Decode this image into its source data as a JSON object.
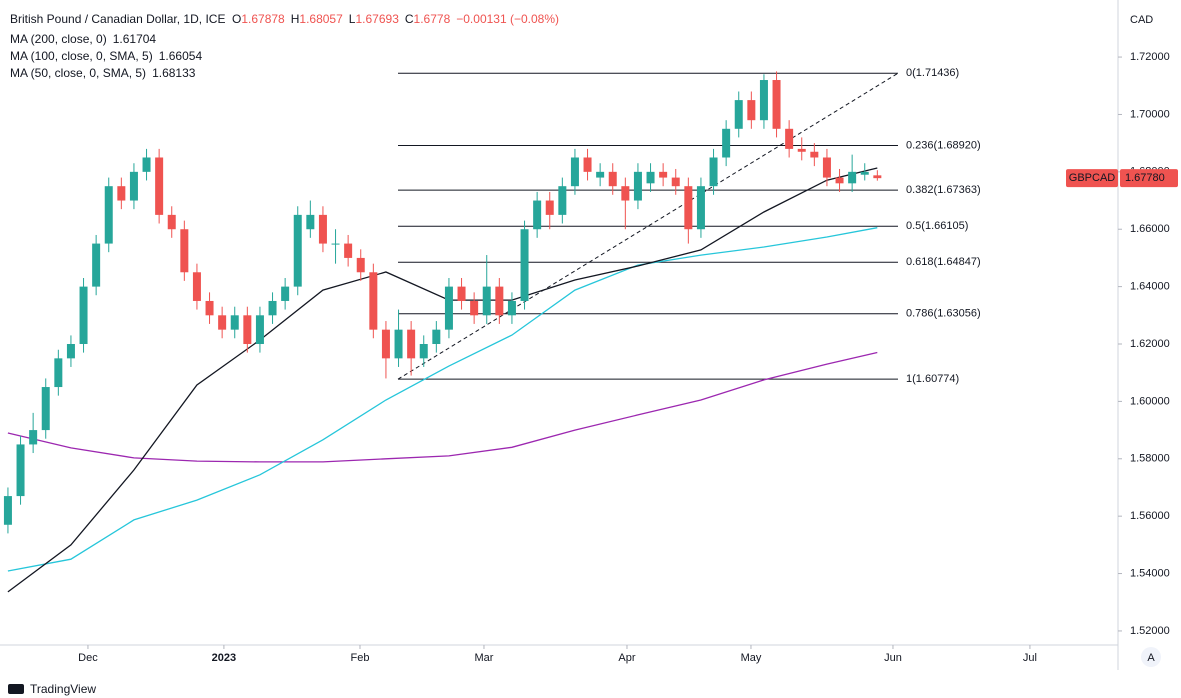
{
  "chart_data": {
    "type": "candlestick",
    "title": "British Pound / Canadian Dollar, 1D, ICE",
    "ohlc_letters": [
      "O",
      "H",
      "L",
      "C"
    ],
    "change_label": "−0.00131 (−0.08%)",
    "currency": "CAD",
    "symbol": "GBPCAD",
    "last_price_label": "1.67780",
    "brand": "TradingView",
    "scale_button": "A",
    "up_color": "#26a69a",
    "down_color": "#ef5350",
    "ohlc": [
      [
        1.557,
        1.57,
        1.554,
        1.567
      ],
      [
        1.567,
        1.588,
        1.564,
        1.585
      ],
      [
        1.585,
        1.596,
        1.582,
        1.59
      ],
      [
        1.59,
        1.608,
        1.587,
        1.605
      ],
      [
        1.605,
        1.618,
        1.602,
        1.615
      ],
      [
        1.615,
        1.623,
        1.612,
        1.62
      ],
      [
        1.62,
        1.643,
        1.617,
        1.64
      ],
      [
        1.64,
        1.658,
        1.637,
        1.655
      ],
      [
        1.655,
        1.678,
        1.652,
        1.675
      ],
      [
        1.675,
        1.678,
        1.667,
        1.67
      ],
      [
        1.67,
        1.683,
        1.667,
        1.68
      ],
      [
        1.68,
        1.688,
        1.677,
        1.685
      ],
      [
        1.685,
        1.688,
        1.662,
        1.665
      ],
      [
        1.665,
        1.668,
        1.657,
        1.66
      ],
      [
        1.66,
        1.663,
        1.642,
        1.645
      ],
      [
        1.645,
        1.648,
        1.632,
        1.635
      ],
      [
        1.635,
        1.638,
        1.627,
        1.63
      ],
      [
        1.63,
        1.633,
        1.622,
        1.625
      ],
      [
        1.625,
        1.633,
        1.622,
        1.63
      ],
      [
        1.63,
        1.633,
        1.617,
        1.62
      ],
      [
        1.62,
        1.633,
        1.617,
        1.63
      ],
      [
        1.63,
        1.638,
        1.627,
        1.635
      ],
      [
        1.635,
        1.643,
        1.632,
        1.64
      ],
      [
        1.64,
        1.668,
        1.637,
        1.665
      ],
      [
        1.66,
        1.67,
        1.657,
        1.665
      ],
      [
        1.665,
        1.668,
        1.652,
        1.655
      ],
      [
        1.655,
        1.66,
        1.648,
        1.655
      ],
      [
        1.655,
        1.658,
        1.647,
        1.65
      ],
      [
        1.65,
        1.653,
        1.642,
        1.645
      ],
      [
        1.645,
        1.648,
        1.622,
        1.625
      ],
      [
        1.625,
        1.628,
        1.608,
        1.615
      ],
      [
        1.615,
        1.632,
        1.612,
        1.625
      ],
      [
        1.625,
        1.628,
        1.609,
        1.615
      ],
      [
        1.615,
        1.623,
        1.612,
        1.62
      ],
      [
        1.62,
        1.628,
        1.617,
        1.625
      ],
      [
        1.625,
        1.643,
        1.622,
        1.64
      ],
      [
        1.64,
        1.643,
        1.632,
        1.635
      ],
      [
        1.635,
        1.638,
        1.627,
        1.63
      ],
      [
        1.63,
        1.651,
        1.627,
        1.64
      ],
      [
        1.64,
        1.643,
        1.627,
        1.63
      ],
      [
        1.63,
        1.638,
        1.627,
        1.635
      ],
      [
        1.635,
        1.663,
        1.632,
        1.66
      ],
      [
        1.66,
        1.673,
        1.657,
        1.67
      ],
      [
        1.67,
        1.673,
        1.66,
        1.665
      ],
      [
        1.665,
        1.678,
        1.662,
        1.675
      ],
      [
        1.675,
        1.688,
        1.672,
        1.685
      ],
      [
        1.685,
        1.688,
        1.677,
        1.68
      ],
      [
        1.678,
        1.683,
        1.675,
        1.68
      ],
      [
        1.68,
        1.683,
        1.672,
        1.675
      ],
      [
        1.675,
        1.678,
        1.66,
        1.67
      ],
      [
        1.67,
        1.683,
        1.667,
        1.68
      ],
      [
        1.676,
        1.683,
        1.673,
        1.68
      ],
      [
        1.68,
        1.683,
        1.675,
        1.678
      ],
      [
        1.678,
        1.681,
        1.672,
        1.675
      ],
      [
        1.675,
        1.678,
        1.655,
        1.66
      ],
      [
        1.66,
        1.678,
        1.657,
        1.675
      ],
      [
        1.675,
        1.688,
        1.672,
        1.685
      ],
      [
        1.685,
        1.698,
        1.682,
        1.695
      ],
      [
        1.695,
        1.708,
        1.692,
        1.705
      ],
      [
        1.705,
        1.708,
        1.695,
        1.698
      ],
      [
        1.698,
        1.714,
        1.695,
        1.712
      ],
      [
        1.712,
        1.715,
        1.692,
        1.695
      ],
      [
        1.695,
        1.698,
        1.685,
        1.688
      ],
      [
        1.688,
        1.692,
        1.684,
        1.687
      ],
      [
        1.687,
        1.69,
        1.682,
        1.685
      ],
      [
        1.685,
        1.688,
        1.675,
        1.678
      ],
      [
        1.678,
        1.681,
        1.673,
        1.676
      ],
      [
        1.676,
        1.686,
        1.673,
        1.68
      ],
      [
        1.679,
        1.683,
        1.677,
        1.68
      ],
      [
        1.67878,
        1.68057,
        1.67693,
        1.6778
      ]
    ],
    "series": [
      {
        "name": "MA (200, close, 0)",
        "color": "#9c27b0",
        "x": [
          0,
          5,
          10,
          15,
          20,
          25,
          30,
          35,
          40,
          45,
          50,
          55,
          60,
          65,
          69
        ],
        "values": [
          1.589,
          1.5838,
          1.5803,
          1.5792,
          1.5789,
          1.5789,
          1.58,
          1.581,
          1.584,
          1.59,
          1.5953,
          1.6005,
          1.6075,
          1.613,
          1.61704
        ]
      },
      {
        "name": "MA (100, close, 0, SMA, 5)",
        "color": "#26c6da",
        "x": [
          0,
          5,
          10,
          15,
          20,
          25,
          30,
          35,
          40,
          45,
          50,
          55,
          60,
          65,
          69
        ],
        "values": [
          1.5409,
          1.545,
          1.5587,
          1.5656,
          1.5744,
          1.5866,
          1.6005,
          1.6123,
          1.6231,
          1.6388,
          1.6475,
          1.651,
          1.6538,
          1.6573,
          1.66054
        ]
      },
      {
        "name": "MA (50, close, 0, SMA, 5)",
        "color": "#131722",
        "x": [
          0,
          5,
          10,
          15,
          20,
          25,
          30,
          35,
          40,
          45,
          50,
          55,
          60,
          65,
          69
        ],
        "values": [
          1.5336,
          1.55,
          1.5761,
          1.6057,
          1.6214,
          1.6388,
          1.6451,
          1.6353,
          1.6353,
          1.6423,
          1.6472,
          1.6528,
          1.666,
          1.6771,
          1.68133
        ]
      }
    ],
    "fib_levels": [
      {
        "value": 1.71436,
        "label": "0(1.71436)"
      },
      {
        "value": 1.6892,
        "label": "0.236(1.68920)"
      },
      {
        "value": 1.67363,
        "label": "0.382(1.67363)"
      },
      {
        "value": 1.66105,
        "label": "0.5(1.66105)"
      },
      {
        "value": 1.64847,
        "label": "0.618(1.64847)"
      },
      {
        "value": 1.63056,
        "label": "0.786(1.63056)"
      },
      {
        "value": 1.60774,
        "label": "1(1.60774)"
      }
    ],
    "xlim": [
      -0.63,
      88.1
    ],
    "xticks": [
      {
        "value": 6.35,
        "label": "Dec"
      },
      {
        "value": 17.14,
        "label": "2023"
      },
      {
        "value": 27.94,
        "label": "Feb"
      },
      {
        "value": 37.78,
        "label": "Mar"
      },
      {
        "value": 49.13,
        "label": "Apr"
      },
      {
        "value": 58.97,
        "label": "May"
      },
      {
        "value": 70.24,
        "label": "Jun"
      },
      {
        "value": 81.11,
        "label": "Jul"
      }
    ],
    "ylim": [
      1.5151,
      1.7371
    ],
    "yticks": [
      {
        "value": 1.52,
        "label": "1.52000"
      },
      {
        "value": 1.54,
        "label": "1.54000"
      },
      {
        "value": 1.56,
        "label": "1.56000"
      },
      {
        "value": 1.58,
        "label": "1.58000"
      },
      {
        "value": 1.6,
        "label": "1.60000"
      },
      {
        "value": 1.62,
        "label": "1.62000"
      },
      {
        "value": 1.64,
        "label": "1.64000"
      },
      {
        "value": 1.66,
        "label": "1.66000"
      },
      {
        "value": 1.68,
        "label": "1.68000"
      },
      {
        "value": 1.7,
        "label": "1.70000"
      },
      {
        "value": 1.72,
        "label": "1.72000"
      }
    ]
  }
}
